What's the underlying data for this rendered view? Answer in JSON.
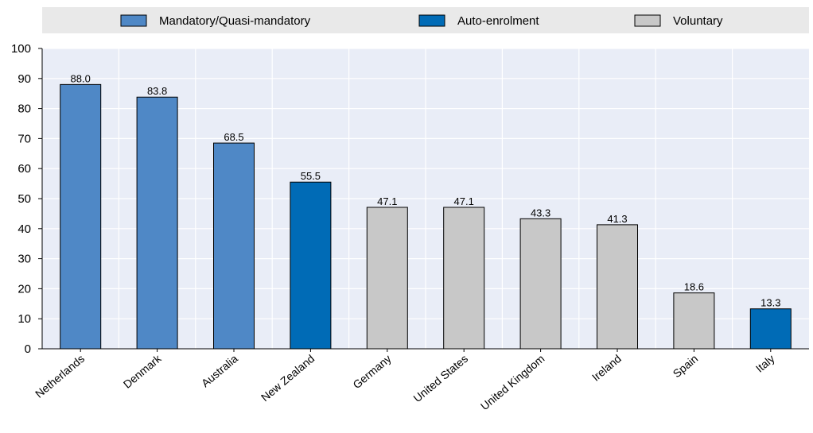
{
  "chart_data": {
    "type": "bar",
    "title": "",
    "xlabel": "",
    "ylabel": "",
    "ylim": [
      0,
      100
    ],
    "yticks": [
      0,
      10,
      20,
      30,
      40,
      50,
      60,
      70,
      80,
      90,
      100
    ],
    "grid": true,
    "legend_position": "top",
    "legend": [
      {
        "label": "Mandatory/Quasi-mandatory",
        "color": "#4f88c6"
      },
      {
        "label": "Auto-enrolment",
        "color": "#006bb6"
      },
      {
        "label": "Voluntary",
        "color": "#c8c8c8"
      }
    ],
    "categories": [
      "Netherlands",
      "Denmark",
      "Australia",
      "New Zealand",
      "Germany",
      "United States",
      "United Kingdom",
      "Ireland",
      "Spain",
      "Italy"
    ],
    "values": [
      88.0,
      83.8,
      68.5,
      55.5,
      47.1,
      47.1,
      43.3,
      41.3,
      18.6,
      13.3
    ],
    "value_labels": [
      "88.0",
      "83.8",
      "68.5",
      "55.5",
      "47.1",
      "47.1",
      "43.3",
      "41.3",
      "18.6",
      "13.3"
    ],
    "bar_group": [
      0,
      0,
      0,
      1,
      2,
      2,
      2,
      2,
      2,
      1
    ],
    "colors": {
      "plot_background": "#e9edf7",
      "legend_background": "#e9e9e9",
      "gridline": "#ffffff",
      "bar_outline": "#000000"
    }
  }
}
